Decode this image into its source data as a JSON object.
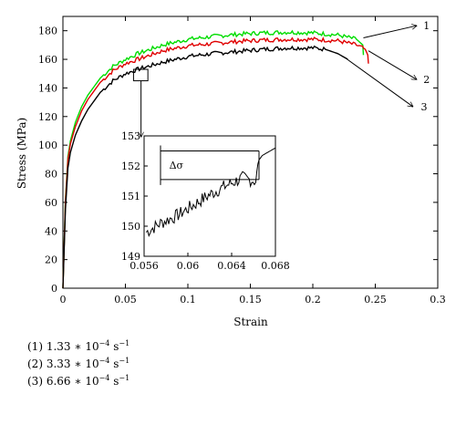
{
  "chart_data": [
    {
      "type": "line",
      "xlabel": "Strain",
      "ylabel": "Stress (MPa)",
      "xlim": [
        0,
        0.3
      ],
      "ylim": [
        0,
        190
      ],
      "x_ticks": [
        "0",
        "0.05",
        "0.1",
        "0.15",
        "0.2",
        "0.25",
        "0.3"
      ],
      "y_ticks": [
        "0",
        "20",
        "40",
        "60",
        "80",
        "100",
        "120",
        "140",
        "160",
        "180"
      ],
      "grid": false,
      "series": [
        {
          "name": "1",
          "color": "#00dd00",
          "x": [
            0,
            0.002,
            0.004,
            0.006,
            0.01,
            0.015,
            0.02,
            0.03,
            0.04,
            0.05,
            0.06,
            0.08,
            0.1,
            0.12,
            0.14,
            0.16,
            0.18,
            0.2,
            0.22,
            0.235,
            0.24,
            0.2405
          ],
          "y": [
            0,
            62,
            92,
            103,
            116,
            127,
            135,
            147,
            155,
            160,
            164,
            170,
            174,
            176,
            177.5,
            178.5,
            179,
            178.5,
            177,
            174,
            170,
            163
          ]
        },
        {
          "name": "2",
          "color": "#e00000",
          "x": [
            0,
            0.002,
            0.004,
            0.006,
            0.01,
            0.015,
            0.02,
            0.03,
            0.04,
            0.05,
            0.06,
            0.08,
            0.1,
            0.12,
            0.14,
            0.16,
            0.18,
            0.2,
            0.22,
            0.235,
            0.242,
            0.244,
            0.2445
          ],
          "y": [
            0,
            60,
            90,
            101,
            113,
            124,
            132,
            144,
            152,
            157,
            160,
            166,
            169.5,
            171,
            172.5,
            173.5,
            174,
            174,
            173,
            170,
            167,
            163,
            157
          ]
        },
        {
          "name": "3",
          "color": "#000000",
          "x": [
            0,
            0.002,
            0.004,
            0.006,
            0.01,
            0.015,
            0.02,
            0.03,
            0.04,
            0.05,
            0.06,
            0.08,
            0.1,
            0.12,
            0.14,
            0.16,
            0.18,
            0.2,
            0.21,
            0.22,
            0.228
          ],
          "y": [
            0,
            55,
            84,
            95,
            107,
            117,
            125,
            137,
            145,
            150,
            153,
            158,
            162,
            164,
            165.5,
            167,
            168,
            168,
            167,
            164,
            160
          ]
        }
      ],
      "annotations": [
        "1",
        "2",
        "3"
      ]
    },
    {
      "type": "line",
      "inset": true,
      "xlim": [
        0.056,
        0.068
      ],
      "ylim": [
        149,
        153
      ],
      "x_ticks": [
        "0.056",
        "0.06",
        "0.064",
        "0.068"
      ],
      "y_ticks": [
        "149",
        "150",
        "151",
        "152",
        "153"
      ],
      "annotations": [
        "Δσ"
      ],
      "series": [
        {
          "color": "#000000",
          "x": [
            0.0562,
            0.0575,
            0.059,
            0.0605,
            0.062,
            0.0635,
            0.065,
            0.0662,
            0.0665,
            0.0668,
            0.068
          ],
          "y": [
            149.8,
            150.1,
            150.35,
            150.7,
            151.05,
            151.35,
            151.6,
            151.5,
            152.2,
            152.35,
            152.6
          ]
        }
      ]
    }
  ],
  "legend": [
    {
      "prefix": "(1) 1.33 ∗ 10",
      "exp": "−4",
      "mid": " s",
      "exp2": "−1"
    },
    {
      "prefix": "(2) 3.33 ∗ 10",
      "exp": "−4",
      "mid": " s",
      "exp2": "−1"
    },
    {
      "prefix": "(3) 6.66 ∗ 10",
      "exp": "−4",
      "mid": " s",
      "exp2": "−1"
    }
  ]
}
